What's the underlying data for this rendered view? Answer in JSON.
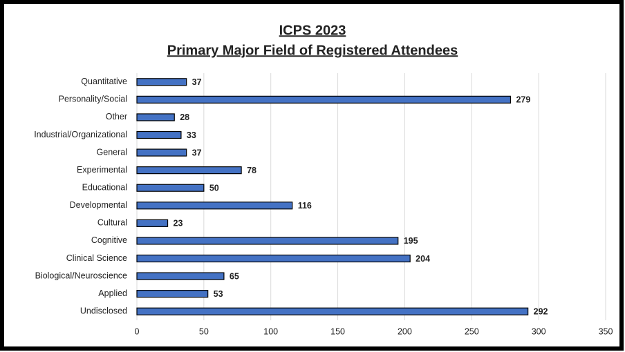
{
  "chart_data": {
    "type": "bar",
    "orientation": "horizontal",
    "title": "ICPS 2023",
    "subtitle": "Primary Major Field of Registered Attendees",
    "categories": [
      "Quantitative",
      "Personality/Social",
      "Other",
      "Industrial/Organizational",
      "General",
      "Experimental",
      "Educational",
      "Developmental",
      "Cultural",
      "Cognitive",
      "Clinical Science",
      "Biological/Neuroscience",
      "Applied",
      "Undisclosed"
    ],
    "values": [
      37,
      279,
      28,
      33,
      37,
      78,
      50,
      116,
      23,
      195,
      204,
      65,
      53,
      292
    ],
    "color": "#4472c4",
    "xlim": [
      0,
      350
    ],
    "xticks": [
      0,
      50,
      100,
      150,
      200,
      250,
      300,
      350
    ],
    "grid": true
  }
}
